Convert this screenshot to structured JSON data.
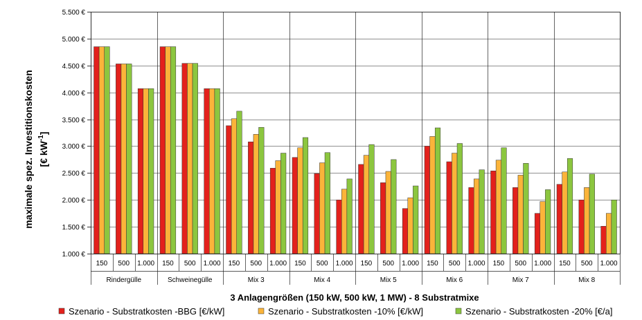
{
  "chart_data": {
    "type": "bar",
    "ylabel_line1": "maximale spez. Investitionskosten",
    "ylabel_line2_prefix": "[€ kW",
    "ylabel_line2_sup": "-1",
    "ylabel_line2_suffix": "]",
    "xlabel": "3 Anlagengrößen (150 kW, 500  kW, 1 MW) - 8 Substratmixe",
    "ylim": [
      1000,
      5500
    ],
    "ytick_values": [
      1000,
      1500,
      2000,
      2500,
      3000,
      3500,
      4000,
      4500,
      5000,
      5500
    ],
    "ytick_labels": [
      "1.000 €",
      "1.500 €",
      "2.000 €",
      "2.500 €",
      "3.000 €",
      "3.500 €",
      "4.000 €",
      "4.500 €",
      "5.000 €",
      "5.500 €"
    ],
    "grid": true,
    "legend_position": "bottom",
    "groups": [
      "Rindergülle",
      "Schweinegülle",
      "Mix 3",
      "Mix 4",
      "Mix 5",
      "Mix 6",
      "Mix 7",
      "Mix 8"
    ],
    "sizes": [
      "150",
      "500",
      "1.000"
    ],
    "series": [
      {
        "name": "Szenario - Substratkosten -BBG [€/kW]",
        "color": "#e3211c",
        "values": [
          4850,
          4530,
          4070,
          4850,
          4540,
          4070,
          3380,
          3080,
          2590,
          2790,
          2490,
          2000,
          2660,
          2320,
          1840,
          3000,
          2710,
          2230,
          2540,
          2230,
          1750,
          2290,
          2000,
          1510
        ]
      },
      {
        "name": "Szenario - Substratkosten -10% [€/kW]",
        "color": "#fbb43a",
        "values": [
          4850,
          4530,
          4070,
          4850,
          4540,
          4070,
          3510,
          3220,
          2730,
          2970,
          2690,
          2200,
          2830,
          2530,
          2040,
          3180,
          2870,
          2390,
          2740,
          2460,
          1970,
          2520,
          2230,
          1750
        ]
      },
      {
        "name": "Szenario - Substratkosten -20% [€/a]",
        "color": "#8cc63f",
        "values": [
          4850,
          4530,
          4070,
          4850,
          4540,
          4070,
          3650,
          3350,
          2870,
          3160,
          2880,
          2390,
          3030,
          2750,
          2260,
          3340,
          3050,
          2560,
          2970,
          2680,
          2190,
          2770,
          2480,
          2000
        ]
      }
    ]
  }
}
